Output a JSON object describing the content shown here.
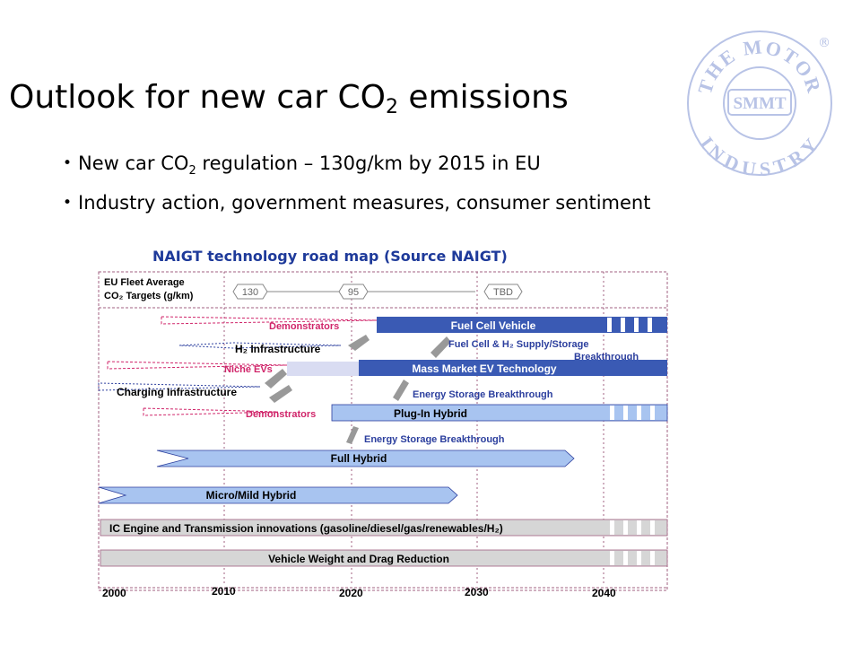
{
  "slide": {
    "title_main": "Outlook for new car CO",
    "title_sub": "2",
    "title_end": " emissions"
  },
  "bullets": [
    {
      "before": "New car CO",
      "sub": "2",
      "after": " regulation – 130g/km by 2015 in EU"
    },
    {
      "before": "Industry action, government measures, consumer sentiment",
      "sub": "",
      "after": ""
    }
  ],
  "caption": "NAIGT technology road map (Source NAIGT)",
  "logo": {
    "ring_text": "THE MOTOR INDUSTRY",
    "center_text": "SMMT",
    "mark": "®",
    "color": "#b8c3e6"
  },
  "roadmap": {
    "targets_label_line1": "EU Fleet Average",
    "targets_label_line2": "CO₂ Targets (g/km)",
    "targets": [
      "130",
      "95",
      "TBD"
    ],
    "rows": {
      "demonstrators_fc": "Demonstrators",
      "fuel_cell_vehicle": "Fuel Cell Vehicle",
      "h2_infrastructure": "H₂ Infrastructure",
      "fuel_cell_supply": "Fuel Cell & H₂ Supply/Storage",
      "breakthrough": "Breakthrough",
      "niche_evs": "Niche EVs",
      "mass_market_ev": "Mass Market EV Technology",
      "charging_infrastructure": "Charging Infrastructure",
      "energy_storage_1": "Energy Storage Breakthrough",
      "demonstrators_ph": "Demonstrators",
      "plug_in_hybrid": "Plug-In Hybrid",
      "energy_storage_2": "Energy Storage Breakthrough",
      "full_hybrid": "Full Hybrid",
      "micro_mild_hybrid": "Micro/Mild Hybrid",
      "ic_engine": "IC Engine and Transmission innovations (gasoline/diesel/gas/renewables/H₂)",
      "vehicle_weight": "Vehicle Weight and Drag Reduction"
    },
    "years": [
      "2000",
      "2010",
      "2020",
      "2030",
      "2040"
    ],
    "colors": {
      "dark_blue": "#3a5ab4",
      "light_blue": "#a8c4f0",
      "text_blue": "#2c3f9e",
      "text_pink": "#d0256a",
      "frame": "#a06080",
      "gray_bar": "#d6d6d6"
    }
  }
}
